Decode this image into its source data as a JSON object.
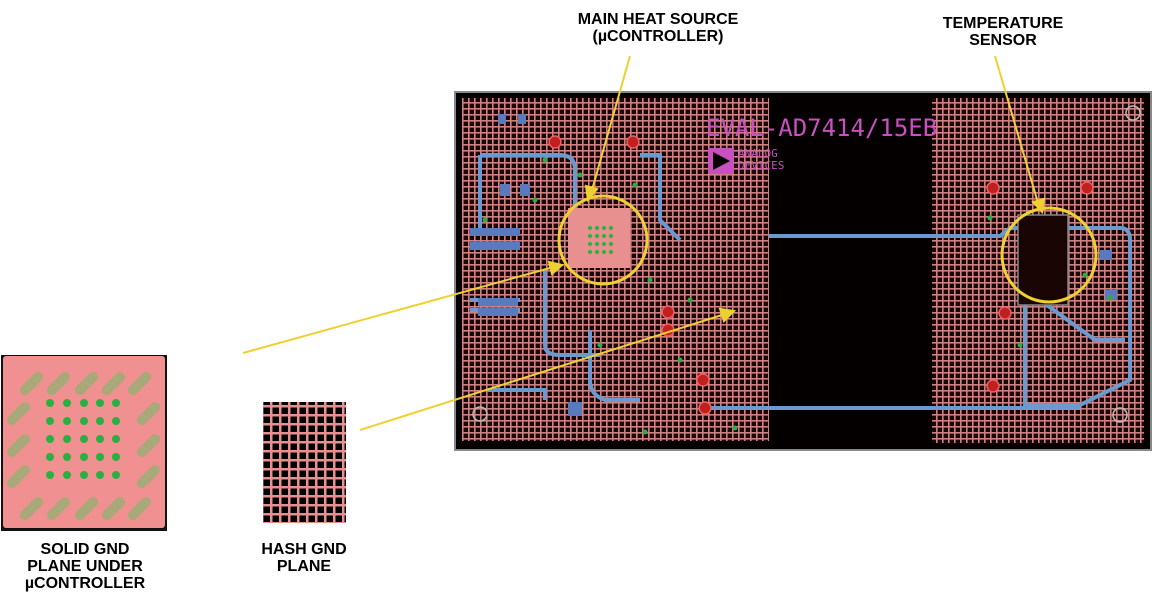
{
  "labels": {
    "main_heat_source": [
      "MAIN HEAT SOURCE",
      "(µCONTROLLER)"
    ],
    "temperature_sensor": [
      "TEMPERATURE",
      "SENSOR"
    ],
    "solid_gnd": [
      "SOLID GND",
      "PLANE UNDER",
      "µCONTROLLER"
    ],
    "hash_gnd": [
      "HASH GND",
      "PLANE"
    ]
  },
  "board": {
    "silkscreen_title": "EVAL-AD7414/15EB",
    "logo_text": [
      "ANALOG",
      "DEVICES"
    ]
  },
  "colors": {
    "annotation": "#f0d030",
    "copper": "#e89090",
    "board_bg": "#0a0000",
    "trace": "#6a9ad0",
    "via": "#2ab040",
    "pad": "#a8a878",
    "silkscreen": "#c850c0"
  }
}
